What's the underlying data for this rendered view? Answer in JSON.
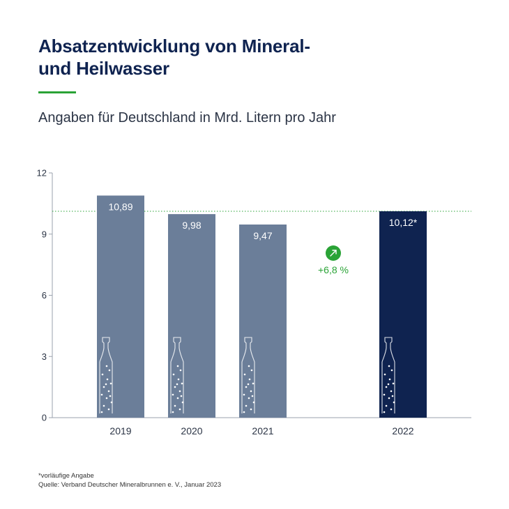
{
  "title_line1": "Absatzentwicklung von Mineral-",
  "title_line2": "und Heilwasser",
  "subtitle": "Angaben für Deutschland in Mrd. Litern pro Jahr",
  "colors": {
    "accent": "#2aa336",
    "bar": "#6b7e99",
    "bar_highlight": "#0f2350",
    "growth_badge": "#2aa336",
    "reference_line": "#2aa336"
  },
  "chart_data": {
    "type": "bar",
    "categories": [
      "2019",
      "2020",
      "2021",
      "2022"
    ],
    "values": [
      10.89,
      9.98,
      9.47,
      10.12
    ],
    "value_labels": [
      "10,89",
      "9,98",
      "9,47",
      "10,12*"
    ],
    "highlight_index": 3,
    "ylim": [
      0,
      12
    ],
    "yticks": [
      0,
      3,
      6,
      9,
      12
    ],
    "ytick_labels": [
      "0",
      "3",
      "6",
      "9",
      "12"
    ],
    "reference_line_value": 10.12,
    "annotation": {
      "text": "+6,8 %",
      "icon": "arrow-up-right-icon"
    },
    "grid": false,
    "bar_icon": "water-bottle-icon"
  },
  "footnote": {
    "note": "*vorläufige Angabe",
    "source": "Quelle: Verband Deutscher Mineralbrunnen e. V., Januar 2023"
  }
}
